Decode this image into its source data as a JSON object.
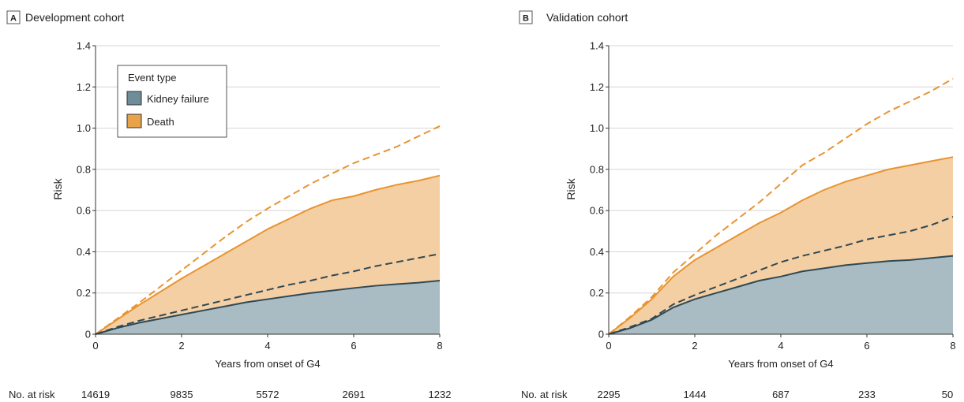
{
  "chart_data": [
    {
      "type": "area",
      "panel_letter": "A",
      "title": "Development cohort",
      "xlabel": "Years from onset of G4",
      "ylabel": "Risk",
      "xlim": [
        0,
        8
      ],
      "ylim": [
        0,
        1.4
      ],
      "x_ticks": [
        "0",
        "2",
        "4",
        "6",
        "8"
      ],
      "y_ticks": [
        "0",
        "0.2",
        "0.4",
        "0.6",
        "0.8",
        "1.0",
        "1.2",
        "1.4"
      ],
      "grid": "horizontal",
      "legend": {
        "title": "Event type",
        "placement": "top-left",
        "items": [
          {
            "label": "Kidney failure",
            "color": "#6e8d99"
          },
          {
            "label": "Death",
            "color": "#e8a24a"
          }
        ]
      },
      "series": [
        {
          "name": "Kidney failure",
          "style": "filled",
          "color": "#a9bcc4",
          "line_color": "#2f4954",
          "x": [
            0,
            0.5,
            1,
            1.5,
            2,
            2.5,
            3,
            3.5,
            4,
            4.5,
            5,
            5.5,
            6,
            6.5,
            7,
            7.5,
            8
          ],
          "y": [
            0,
            0.03,
            0.055,
            0.075,
            0.095,
            0.115,
            0.135,
            0.155,
            0.17,
            0.185,
            0.2,
            0.212,
            0.224,
            0.235,
            0.243,
            0.25,
            0.26
          ]
        },
        {
          "name": "Death",
          "style": "filled",
          "color": "#f5cfa4",
          "line_color": "#e8942f",
          "x": [
            0,
            0.5,
            1,
            1.5,
            2,
            2.5,
            3,
            3.5,
            4,
            4.5,
            5,
            5.5,
            6,
            6.5,
            7,
            7.5,
            8
          ],
          "y": [
            0,
            0.07,
            0.14,
            0.205,
            0.27,
            0.33,
            0.39,
            0.45,
            0.51,
            0.56,
            0.61,
            0.65,
            0.67,
            0.7,
            0.725,
            0.745,
            0.77
          ]
        },
        {
          "style": "dashed",
          "line_color": "#2f4954",
          "x": [
            0,
            0.5,
            1,
            1.5,
            2,
            2.5,
            3,
            3.5,
            4,
            4.5,
            5,
            5.5,
            6,
            6.5,
            7,
            7.5,
            8
          ],
          "y": [
            0,
            0.035,
            0.065,
            0.09,
            0.115,
            0.14,
            0.165,
            0.19,
            0.215,
            0.24,
            0.26,
            0.285,
            0.305,
            0.33,
            0.35,
            0.37,
            0.39
          ]
        },
        {
          "style": "dashed",
          "line_color": "#e8942f",
          "x": [
            0,
            0.5,
            1,
            1.5,
            2,
            2.5,
            3,
            3.5,
            4,
            4.5,
            5,
            5.5,
            6,
            6.5,
            7,
            7.5,
            8
          ],
          "y": [
            0,
            0.075,
            0.15,
            0.23,
            0.31,
            0.39,
            0.47,
            0.545,
            0.61,
            0.67,
            0.73,
            0.78,
            0.83,
            0.87,
            0.91,
            0.96,
            1.01
          ]
        }
      ],
      "at_risk": {
        "label": "No. at risk",
        "x": [
          0,
          2,
          4,
          6,
          8
        ],
        "values": [
          "14619",
          "9835",
          "5572",
          "2691",
          "1232"
        ]
      }
    },
    {
      "type": "area",
      "panel_letter": "B",
      "title": "Validation cohort",
      "xlabel": "Years from onset of G4",
      "ylabel": "Risk",
      "xlim": [
        0,
        8
      ],
      "ylim": [
        0,
        1.4
      ],
      "x_ticks": [
        "0",
        "2",
        "4",
        "6",
        "8"
      ],
      "y_ticks": [
        "0",
        "0.2",
        "0.4",
        "0.6",
        "0.8",
        "1.0",
        "1.2",
        "1.4"
      ],
      "grid": "horizontal",
      "series": [
        {
          "name": "Kidney failure",
          "style": "filled",
          "color": "#a9bcc4",
          "line_color": "#2f4954",
          "x": [
            0,
            0.5,
            1,
            1.5,
            2,
            2.5,
            3,
            3.5,
            4,
            4.5,
            5,
            5.5,
            6,
            6.5,
            7,
            7.5,
            8
          ],
          "y": [
            0,
            0.03,
            0.07,
            0.13,
            0.17,
            0.2,
            0.23,
            0.26,
            0.28,
            0.305,
            0.32,
            0.335,
            0.345,
            0.355,
            0.36,
            0.37,
            0.38
          ]
        },
        {
          "name": "Death",
          "style": "filled",
          "color": "#f5cfa4",
          "line_color": "#e8942f",
          "x": [
            0,
            0.5,
            1,
            1.5,
            2,
            2.5,
            3,
            3.5,
            4,
            4.5,
            5,
            5.5,
            6,
            6.5,
            7,
            7.5,
            8
          ],
          "y": [
            0,
            0.08,
            0.17,
            0.28,
            0.36,
            0.42,
            0.48,
            0.54,
            0.59,
            0.65,
            0.7,
            0.74,
            0.77,
            0.8,
            0.82,
            0.84,
            0.86
          ]
        },
        {
          "style": "dashed",
          "line_color": "#2f4954",
          "x": [
            0,
            0.5,
            1,
            1.5,
            2,
            2.5,
            3,
            3.5,
            4,
            4.5,
            5,
            5.5,
            6,
            6.5,
            7,
            7.5,
            8
          ],
          "y": [
            0,
            0.035,
            0.075,
            0.145,
            0.19,
            0.23,
            0.27,
            0.31,
            0.35,
            0.38,
            0.405,
            0.43,
            0.46,
            0.48,
            0.5,
            0.53,
            0.57
          ]
        },
        {
          "style": "dashed",
          "line_color": "#e8942f",
          "x": [
            0,
            0.5,
            1,
            1.5,
            2,
            2.5,
            3,
            3.5,
            4,
            4.5,
            5,
            5.5,
            6,
            6.5,
            7,
            7.5,
            8
          ],
          "y": [
            0,
            0.085,
            0.18,
            0.3,
            0.39,
            0.48,
            0.56,
            0.64,
            0.73,
            0.82,
            0.88,
            0.95,
            1.02,
            1.08,
            1.13,
            1.18,
            1.24
          ]
        }
      ],
      "at_risk": {
        "label": "No. at risk",
        "x": [
          0,
          2,
          4,
          6,
          8
        ],
        "values": [
          "2295",
          "1444",
          "687",
          "233",
          "50"
        ]
      }
    }
  ]
}
